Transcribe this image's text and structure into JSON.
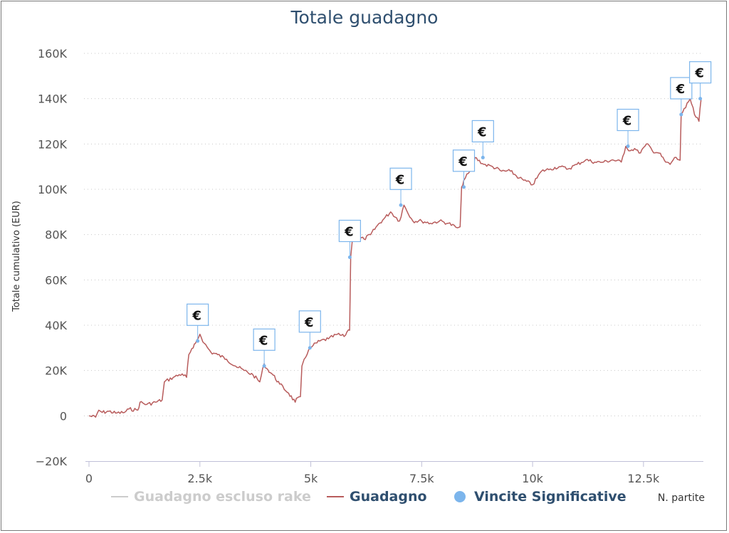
{
  "chart_data": {
    "type": "line",
    "title": "Totale guadagno",
    "ylabel": "Totale cumulativo (EUR)",
    "xlabel": "N. partite",
    "xlim": [
      0,
      13850
    ],
    "ylim": [
      -20000,
      160000
    ],
    "x_ticks": [
      0,
      2500,
      5000,
      7500,
      10000,
      12500
    ],
    "x_tick_labels": [
      "0",
      "2.5k",
      "5k",
      "7.5k",
      "10k",
      "12.5k"
    ],
    "y_ticks": [
      -20000,
      0,
      20000,
      40000,
      60000,
      80000,
      100000,
      120000,
      140000,
      160000
    ],
    "y_tick_labels": [
      "−20K",
      "0",
      "20K",
      "40K",
      "60K",
      "80K",
      "100K",
      "120K",
      "140K",
      "160K"
    ],
    "grid": "horizontal dotted",
    "legend_position": "bottom",
    "series": [
      {
        "name": "Guadagno escluso rake",
        "hidden": true,
        "color": "#cccccc",
        "x": [],
        "y": []
      },
      {
        "name": "Guadagno",
        "color": "#b85c5c",
        "x": [
          0,
          150,
          220,
          300,
          450,
          600,
          800,
          900,
          1100,
          1150,
          1300,
          1500,
          1650,
          1700,
          1900,
          2100,
          2200,
          2250,
          2350,
          2400,
          2500,
          2600,
          2750,
          2900,
          3100,
          3300,
          3500,
          3700,
          3850,
          3950,
          4000,
          4150,
          4300,
          4500,
          4650,
          4700,
          4800,
          4850,
          4950,
          5050,
          5200,
          5400,
          5600,
          5750,
          5850,
          5900,
          5950,
          6050,
          6200,
          6350,
          6500,
          6650,
          6800,
          7000,
          7100,
          7300,
          7500,
          7700,
          7900,
          8100,
          8300,
          8400,
          8450,
          8550,
          8650,
          8700,
          8900,
          9100,
          9300,
          9500,
          9700,
          9800,
          10000,
          10200,
          10400,
          10600,
          10800,
          11000,
          11200,
          11400,
          11600,
          11800,
          12000,
          12100,
          12200,
          12300,
          12400,
          12600,
          12700,
          12850,
          13000,
          13100,
          13200,
          13300,
          13350,
          13450,
          13550,
          13650,
          13750,
          13800
        ],
        "y": [
          0,
          -600,
          2500,
          1500,
          2000,
          1200,
          1500,
          3000,
          2500,
          6000,
          5000,
          6000,
          7000,
          15000,
          17000,
          18500,
          17000,
          27000,
          30000,
          32000,
          36000,
          32000,
          28000,
          27000,
          25000,
          22000,
          20000,
          18000,
          15000,
          23000,
          21000,
          18000,
          14000,
          10000,
          6000,
          8000,
          22000,
          25000,
          29000,
          31000,
          33000,
          34000,
          36000,
          35000,
          38000,
          70000,
          80000,
          79000,
          78000,
          80000,
          84000,
          87000,
          90000,
          86000,
          93000,
          86000,
          86000,
          85000,
          86000,
          85000,
          83000,
          101000,
          104000,
          107000,
          109000,
          114000,
          111000,
          110000,
          108000,
          108000,
          105000,
          104000,
          102000,
          108000,
          109000,
          110000,
          109000,
          111000,
          113000,
          112000,
          112000,
          113000,
          112000,
          119000,
          117000,
          118000,
          116000,
          120000,
          117000,
          116000,
          112000,
          111000,
          114000,
          113000,
          133000,
          136000,
          140000,
          133000,
          130000,
          140000
        ]
      },
      {
        "name": "Vincite Significative",
        "color": "#7cb5ec",
        "marker_symbol": "€",
        "x": [
          2450,
          3950,
          4980,
          5880,
          7030,
          8450,
          8880,
          12150,
          13350,
          13780
        ],
        "y": [
          33000,
          22000,
          30000,
          70000,
          93000,
          101000,
          114000,
          119000,
          133000,
          140000
        ]
      }
    ]
  }
}
